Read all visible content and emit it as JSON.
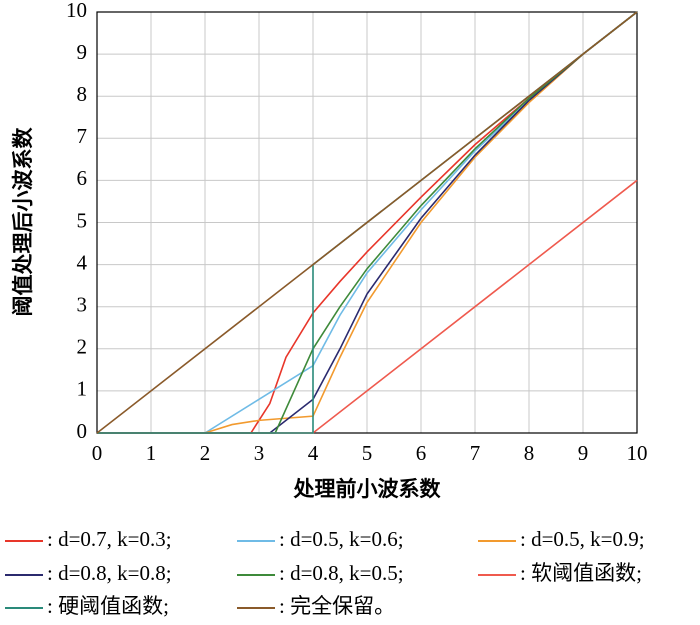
{
  "chart_data": {
    "type": "line",
    "x_label": "处理前小波系数",
    "y_label": "阈值处理后小波系数",
    "xlim": [
      0,
      10
    ],
    "ylim": [
      0,
      10
    ],
    "xticks": [
      0,
      1,
      2,
      3,
      4,
      5,
      6,
      7,
      8,
      9,
      10
    ],
    "yticks": [
      0,
      1,
      2,
      3,
      4,
      5,
      6,
      7,
      8,
      9,
      10
    ],
    "grid": true,
    "series": [
      {
        "name": ": d=0.7, k=0.3;",
        "color": "#e8362a",
        "x": [
          0,
          2.85,
          3.2,
          3.5,
          4,
          4.5,
          5,
          6,
          7,
          8,
          9,
          10
        ],
        "values": [
          0,
          0,
          0.7,
          1.8,
          2.85,
          3.6,
          4.3,
          5.6,
          6.85,
          7.95,
          9,
          10
        ]
      },
      {
        "name": ": d=0.5, k=0.6;",
        "color": "#6fbbe6",
        "x": [
          0,
          2,
          4,
          4.5,
          5,
          6,
          7,
          8,
          9,
          10
        ],
        "values": [
          0,
          0,
          1.6,
          2.8,
          3.8,
          5.3,
          6.7,
          7.9,
          9,
          10
        ]
      },
      {
        "name": ": d=0.5, k=0.9;",
        "color": "#f29a2e",
        "x": [
          0,
          2,
          2.5,
          3,
          4,
          4,
          4.5,
          5,
          6,
          7,
          8,
          9,
          10
        ],
        "values": [
          0,
          0,
          0.2,
          0.3,
          0.4,
          0.4,
          1.8,
          3.1,
          5.0,
          6.55,
          7.85,
          9,
          10
        ]
      },
      {
        "name": ": d=0.8, k=0.8;",
        "color": "#2b2a6e",
        "x": [
          0,
          3.2,
          4,
          4.5,
          5,
          6,
          7,
          8,
          9,
          10
        ],
        "values": [
          0,
          0,
          0.8,
          2.0,
          3.3,
          5.1,
          6.6,
          7.9,
          9,
          10
        ]
      },
      {
        "name": ": d=0.8, k=0.5;",
        "color": "#3e8a3a",
        "x": [
          0,
          3.3,
          4,
          4.5,
          5,
          6,
          7,
          8,
          9,
          10
        ],
        "values": [
          0,
          0,
          2.0,
          3.0,
          3.9,
          5.4,
          6.75,
          7.95,
          9,
          10
        ]
      },
      {
        "name": ": 软阈值函数;",
        "color": "#ef5a4e",
        "x": [
          0,
          4,
          10
        ],
        "values": [
          0,
          0,
          6
        ]
      },
      {
        "name": ": 硬阈值函数;",
        "color": "#2a8a7a",
        "x": [
          0,
          4,
          4,
          10
        ],
        "values": [
          0,
          0,
          4,
          10
        ]
      },
      {
        "name": ": 完全保留。",
        "color": "#8a5a2a",
        "x": [
          0,
          10
        ],
        "values": [
          0,
          10
        ]
      }
    ]
  }
}
